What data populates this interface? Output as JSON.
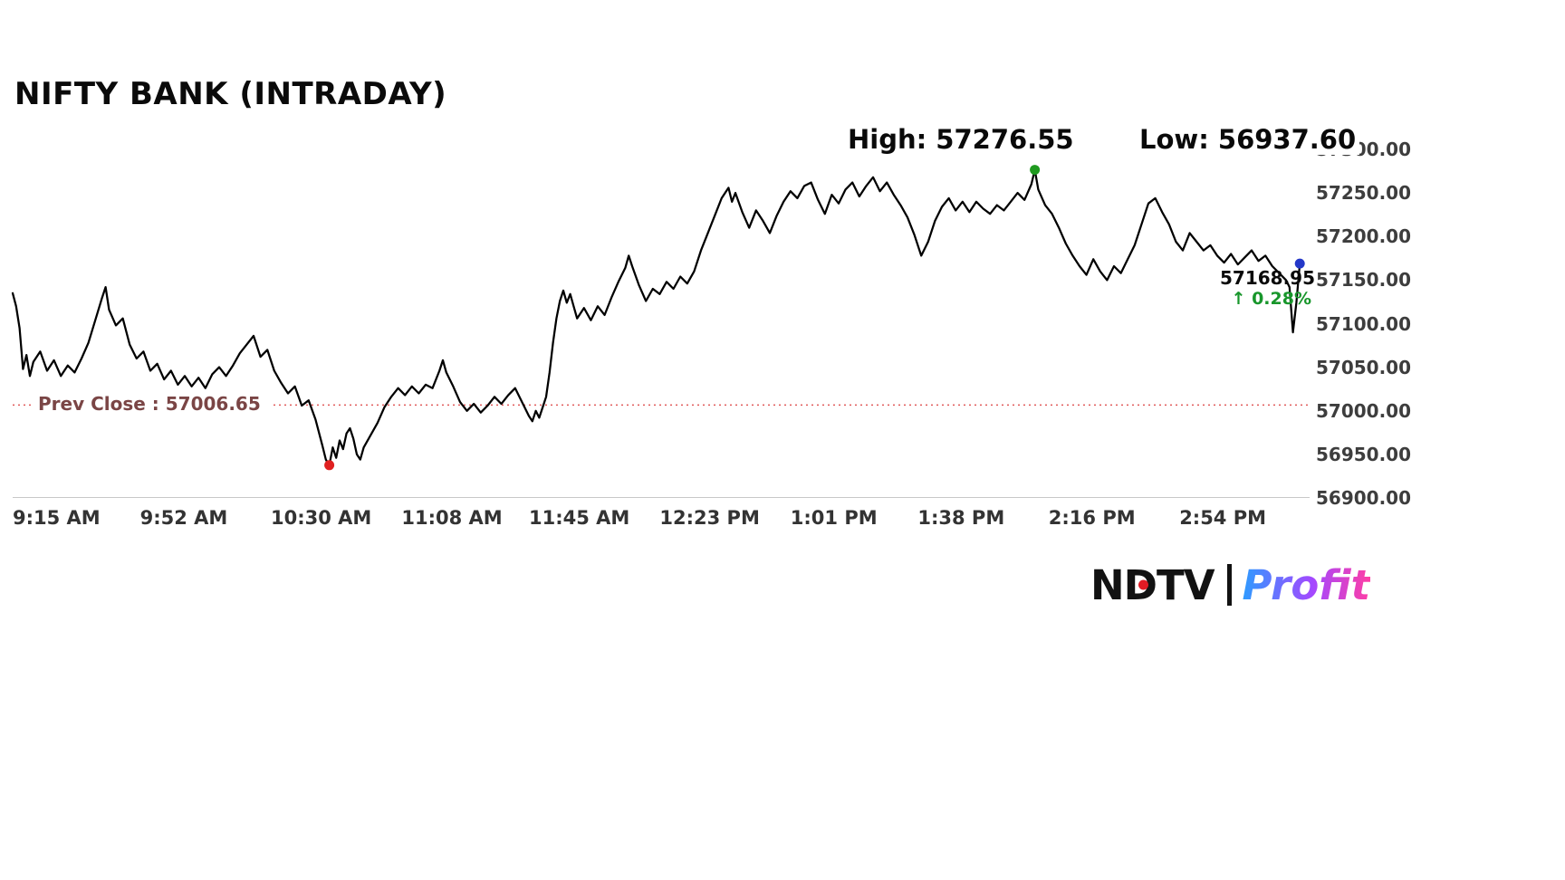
{
  "chart_data": {
    "type": "line",
    "title": "NIFTY BANK (INTRADAY)",
    "x_unit": "minutes since 9:15 AM",
    "x_domain": [
      0,
      375
    ],
    "ylim": [
      56900,
      57300
    ],
    "grid": false,
    "legend": false,
    "line_color": "#000000",
    "x_ticks": [
      {
        "m": 0,
        "label": "9:15 AM"
      },
      {
        "m": 37,
        "label": "9:52 AM"
      },
      {
        "m": 75,
        "label": "10:30 AM"
      },
      {
        "m": 113,
        "label": "11:08 AM"
      },
      {
        "m": 150,
        "label": "11:45 AM"
      },
      {
        "m": 188,
        "label": "12:23 PM"
      },
      {
        "m": 226,
        "label": "1:01 PM"
      },
      {
        "m": 263,
        "label": "1:38 PM"
      },
      {
        "m": 301,
        "label": "2:16 PM"
      },
      {
        "m": 339,
        "label": "2:54 PM"
      }
    ],
    "y_ticks": [
      57300,
      57250,
      57200,
      57150,
      57100,
      57050,
      57000,
      56950,
      56900
    ],
    "prev_close": {
      "label": "Prev Close : 57006.65",
      "value": 57006.65,
      "line_color": "#e05a5a",
      "label_color": "#7a4545"
    },
    "high": {
      "label": "High: 57276.55",
      "value": 57276.55,
      "minute": 297,
      "marker_color": "#1f9a1f"
    },
    "low": {
      "label": "Low: 56937.60",
      "value": 56937.6,
      "minute": 92,
      "marker_color": "#e02020"
    },
    "last": {
      "price_label": "57168.95",
      "change_arrow": "↑",
      "change_label": "0.28%",
      "value": 57168.95,
      "minute": 374,
      "marker_color": "#2438c8",
      "change_color": "#18962b"
    },
    "series": [
      {
        "name": "NIFTY BANK",
        "points": [
          [
            0,
            57135
          ],
          [
            1,
            57120
          ],
          [
            2,
            57095
          ],
          [
            3,
            57048
          ],
          [
            4,
            57064
          ],
          [
            5,
            57040
          ],
          [
            6,
            57056
          ],
          [
            8,
            57068
          ],
          [
            10,
            57046
          ],
          [
            12,
            57058
          ],
          [
            14,
            57040
          ],
          [
            16,
            57052
          ],
          [
            18,
            57044
          ],
          [
            20,
            57060
          ],
          [
            22,
            57078
          ],
          [
            24,
            57104
          ],
          [
            26,
            57130
          ],
          [
            27,
            57142
          ],
          [
            28,
            57116
          ],
          [
            30,
            57098
          ],
          [
            32,
            57106
          ],
          [
            34,
            57076
          ],
          [
            36,
            57060
          ],
          [
            38,
            57068
          ],
          [
            40,
            57046
          ],
          [
            42,
            57054
          ],
          [
            44,
            57036
          ],
          [
            46,
            57046
          ],
          [
            48,
            57030
          ],
          [
            50,
            57040
          ],
          [
            52,
            57028
          ],
          [
            54,
            57038
          ],
          [
            56,
            57026
          ],
          [
            58,
            57042
          ],
          [
            60,
            57050
          ],
          [
            62,
            57040
          ],
          [
            64,
            57052
          ],
          [
            66,
            57066
          ],
          [
            68,
            57076
          ],
          [
            70,
            57086
          ],
          [
            72,
            57062
          ],
          [
            74,
            57070
          ],
          [
            76,
            57046
          ],
          [
            78,
            57032
          ],
          [
            80,
            57020
          ],
          [
            82,
            57028
          ],
          [
            84,
            57006
          ],
          [
            86,
            57012
          ],
          [
            88,
            56990
          ],
          [
            90,
            56960
          ],
          [
            91,
            56944
          ],
          [
            92,
            56937.6
          ],
          [
            93,
            56958
          ],
          [
            94,
            56946
          ],
          [
            95,
            56966
          ],
          [
            96,
            56956
          ],
          [
            97,
            56974
          ],
          [
            98,
            56980
          ],
          [
            99,
            56968
          ],
          [
            100,
            56950
          ],
          [
            101,
            56944
          ],
          [
            102,
            56958
          ],
          [
            104,
            56972
          ],
          [
            106,
            56986
          ],
          [
            108,
            57004
          ],
          [
            110,
            57016
          ],
          [
            112,
            57026
          ],
          [
            114,
            57018
          ],
          [
            116,
            57028
          ],
          [
            118,
            57020
          ],
          [
            120,
            57030
          ],
          [
            122,
            57026
          ],
          [
            124,
            57046
          ],
          [
            125,
            57058
          ],
          [
            126,
            57044
          ],
          [
            128,
            57028
          ],
          [
            130,
            57010
          ],
          [
            132,
            57000
          ],
          [
            134,
            57008
          ],
          [
            136,
            56998
          ],
          [
            138,
            57006
          ],
          [
            140,
            57016
          ],
          [
            142,
            57008
          ],
          [
            144,
            57018
          ],
          [
            146,
            57026
          ],
          [
            148,
            57010
          ],
          [
            150,
            56994
          ],
          [
            151,
            56988
          ],
          [
            152,
            57000
          ],
          [
            153,
            56992
          ],
          [
            154,
            57004
          ],
          [
            155,
            57016
          ],
          [
            156,
            57044
          ],
          [
            157,
            57078
          ],
          [
            158,
            57106
          ],
          [
            159,
            57126
          ],
          [
            160,
            57138
          ],
          [
            161,
            57124
          ],
          [
            162,
            57134
          ],
          [
            164,
            57106
          ],
          [
            166,
            57118
          ],
          [
            168,
            57104
          ],
          [
            170,
            57120
          ],
          [
            172,
            57110
          ],
          [
            174,
            57130
          ],
          [
            176,
            57148
          ],
          [
            178,
            57164
          ],
          [
            179,
            57178
          ],
          [
            180,
            57166
          ],
          [
            182,
            57144
          ],
          [
            184,
            57126
          ],
          [
            186,
            57140
          ],
          [
            188,
            57134
          ],
          [
            190,
            57148
          ],
          [
            192,
            57140
          ],
          [
            194,
            57154
          ],
          [
            196,
            57146
          ],
          [
            198,
            57160
          ],
          [
            200,
            57184
          ],
          [
            202,
            57204
          ],
          [
            204,
            57224
          ],
          [
            206,
            57244
          ],
          [
            208,
            57256
          ],
          [
            209,
            57240
          ],
          [
            210,
            57250
          ],
          [
            212,
            57228
          ],
          [
            214,
            57210
          ],
          [
            216,
            57230
          ],
          [
            218,
            57218
          ],
          [
            220,
            57204
          ],
          [
            222,
            57224
          ],
          [
            224,
            57240
          ],
          [
            226,
            57252
          ],
          [
            228,
            57244
          ],
          [
            230,
            57258
          ],
          [
            232,
            57262
          ],
          [
            234,
            57242
          ],
          [
            236,
            57226
          ],
          [
            238,
            57248
          ],
          [
            240,
            57238
          ],
          [
            242,
            57254
          ],
          [
            244,
            57262
          ],
          [
            246,
            57246
          ],
          [
            248,
            57258
          ],
          [
            250,
            57268
          ],
          [
            252,
            57252
          ],
          [
            254,
            57262
          ],
          [
            256,
            57248
          ],
          [
            258,
            57236
          ],
          [
            260,
            57222
          ],
          [
            262,
            57202
          ],
          [
            264,
            57178
          ],
          [
            266,
            57194
          ],
          [
            268,
            57218
          ],
          [
            270,
            57234
          ],
          [
            272,
            57244
          ],
          [
            274,
            57230
          ],
          [
            276,
            57240
          ],
          [
            278,
            57228
          ],
          [
            280,
            57240
          ],
          [
            282,
            57232
          ],
          [
            284,
            57226
          ],
          [
            286,
            57236
          ],
          [
            288,
            57230
          ],
          [
            290,
            57240
          ],
          [
            292,
            57250
          ],
          [
            294,
            57242
          ],
          [
            296,
            57260
          ],
          [
            297,
            57276.55
          ],
          [
            298,
            57254
          ],
          [
            300,
            57236
          ],
          [
            302,
            57226
          ],
          [
            304,
            57210
          ],
          [
            306,
            57192
          ],
          [
            308,
            57178
          ],
          [
            310,
            57166
          ],
          [
            312,
            57156
          ],
          [
            314,
            57174
          ],
          [
            316,
            57160
          ],
          [
            318,
            57150
          ],
          [
            320,
            57166
          ],
          [
            322,
            57158
          ],
          [
            324,
            57174
          ],
          [
            326,
            57190
          ],
          [
            328,
            57214
          ],
          [
            330,
            57238
          ],
          [
            332,
            57244
          ],
          [
            334,
            57228
          ],
          [
            336,
            57214
          ],
          [
            338,
            57194
          ],
          [
            340,
            57184
          ],
          [
            342,
            57204
          ],
          [
            344,
            57194
          ],
          [
            346,
            57184
          ],
          [
            348,
            57190
          ],
          [
            350,
            57178
          ],
          [
            352,
            57170
          ],
          [
            354,
            57180
          ],
          [
            356,
            57168
          ],
          [
            358,
            57176
          ],
          [
            360,
            57184
          ],
          [
            362,
            57172
          ],
          [
            364,
            57178
          ],
          [
            366,
            57166
          ],
          [
            368,
            57158
          ],
          [
            370,
            57150
          ],
          [
            371,
            57142
          ],
          [
            372,
            57090
          ],
          [
            373,
            57124
          ],
          [
            374,
            57168.95
          ]
        ]
      }
    ]
  },
  "branding": {
    "ndtv": "NDTV",
    "profit": "Profit",
    "ndtv_dot_color": "#e01b24",
    "profit_gradient": [
      "#2e9bff",
      "#a448ff",
      "#ff3ea5"
    ]
  }
}
